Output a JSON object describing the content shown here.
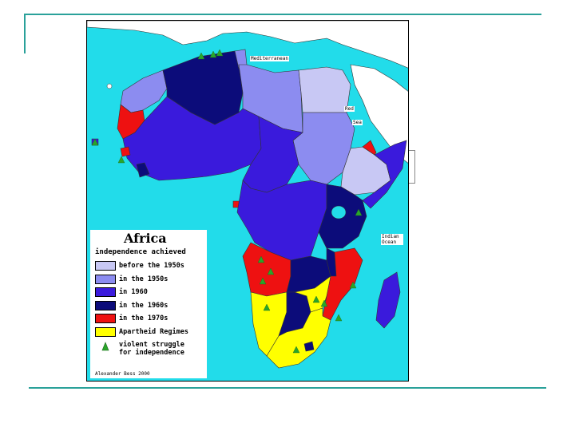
{
  "legend": {
    "title": "Africa",
    "subtitle": "independence achieved",
    "items": [
      {
        "label": "before the 1950s",
        "color": "#c8c8f4"
      },
      {
        "label": "in the 1950s",
        "color": "#8c8cf0"
      },
      {
        "label": "in 1960",
        "color": "#3a1adc"
      },
      {
        "label": "in the 1960s",
        "color": "#0c0c7a"
      },
      {
        "label": "in the 1970s",
        "color": "#ee1111"
      },
      {
        "label": "Apartheid Regimes",
        "color": "#ffff00"
      }
    ],
    "struggle_label": "violent struggle for independence",
    "credit": "Alexander Bess 2000"
  },
  "map_labels": {
    "mediterranean": "Mediterranean",
    "red_sea_1": "Red",
    "red_sea_2": "Sea",
    "indian_ocean": "Indian Ocean"
  },
  "colors": {
    "sea": "#22dcea",
    "land_other": "#ffffff",
    "before_1950s": "#c8c8f4",
    "in_1950s": "#8c8cf0",
    "in_1960": "#3a1adc",
    "in_1960s": "#0c0c7a",
    "in_1970s": "#ee1111",
    "apartheid": "#ffff00",
    "struggle_icon": "#2aa52a",
    "frame": "#2aa19a"
  }
}
